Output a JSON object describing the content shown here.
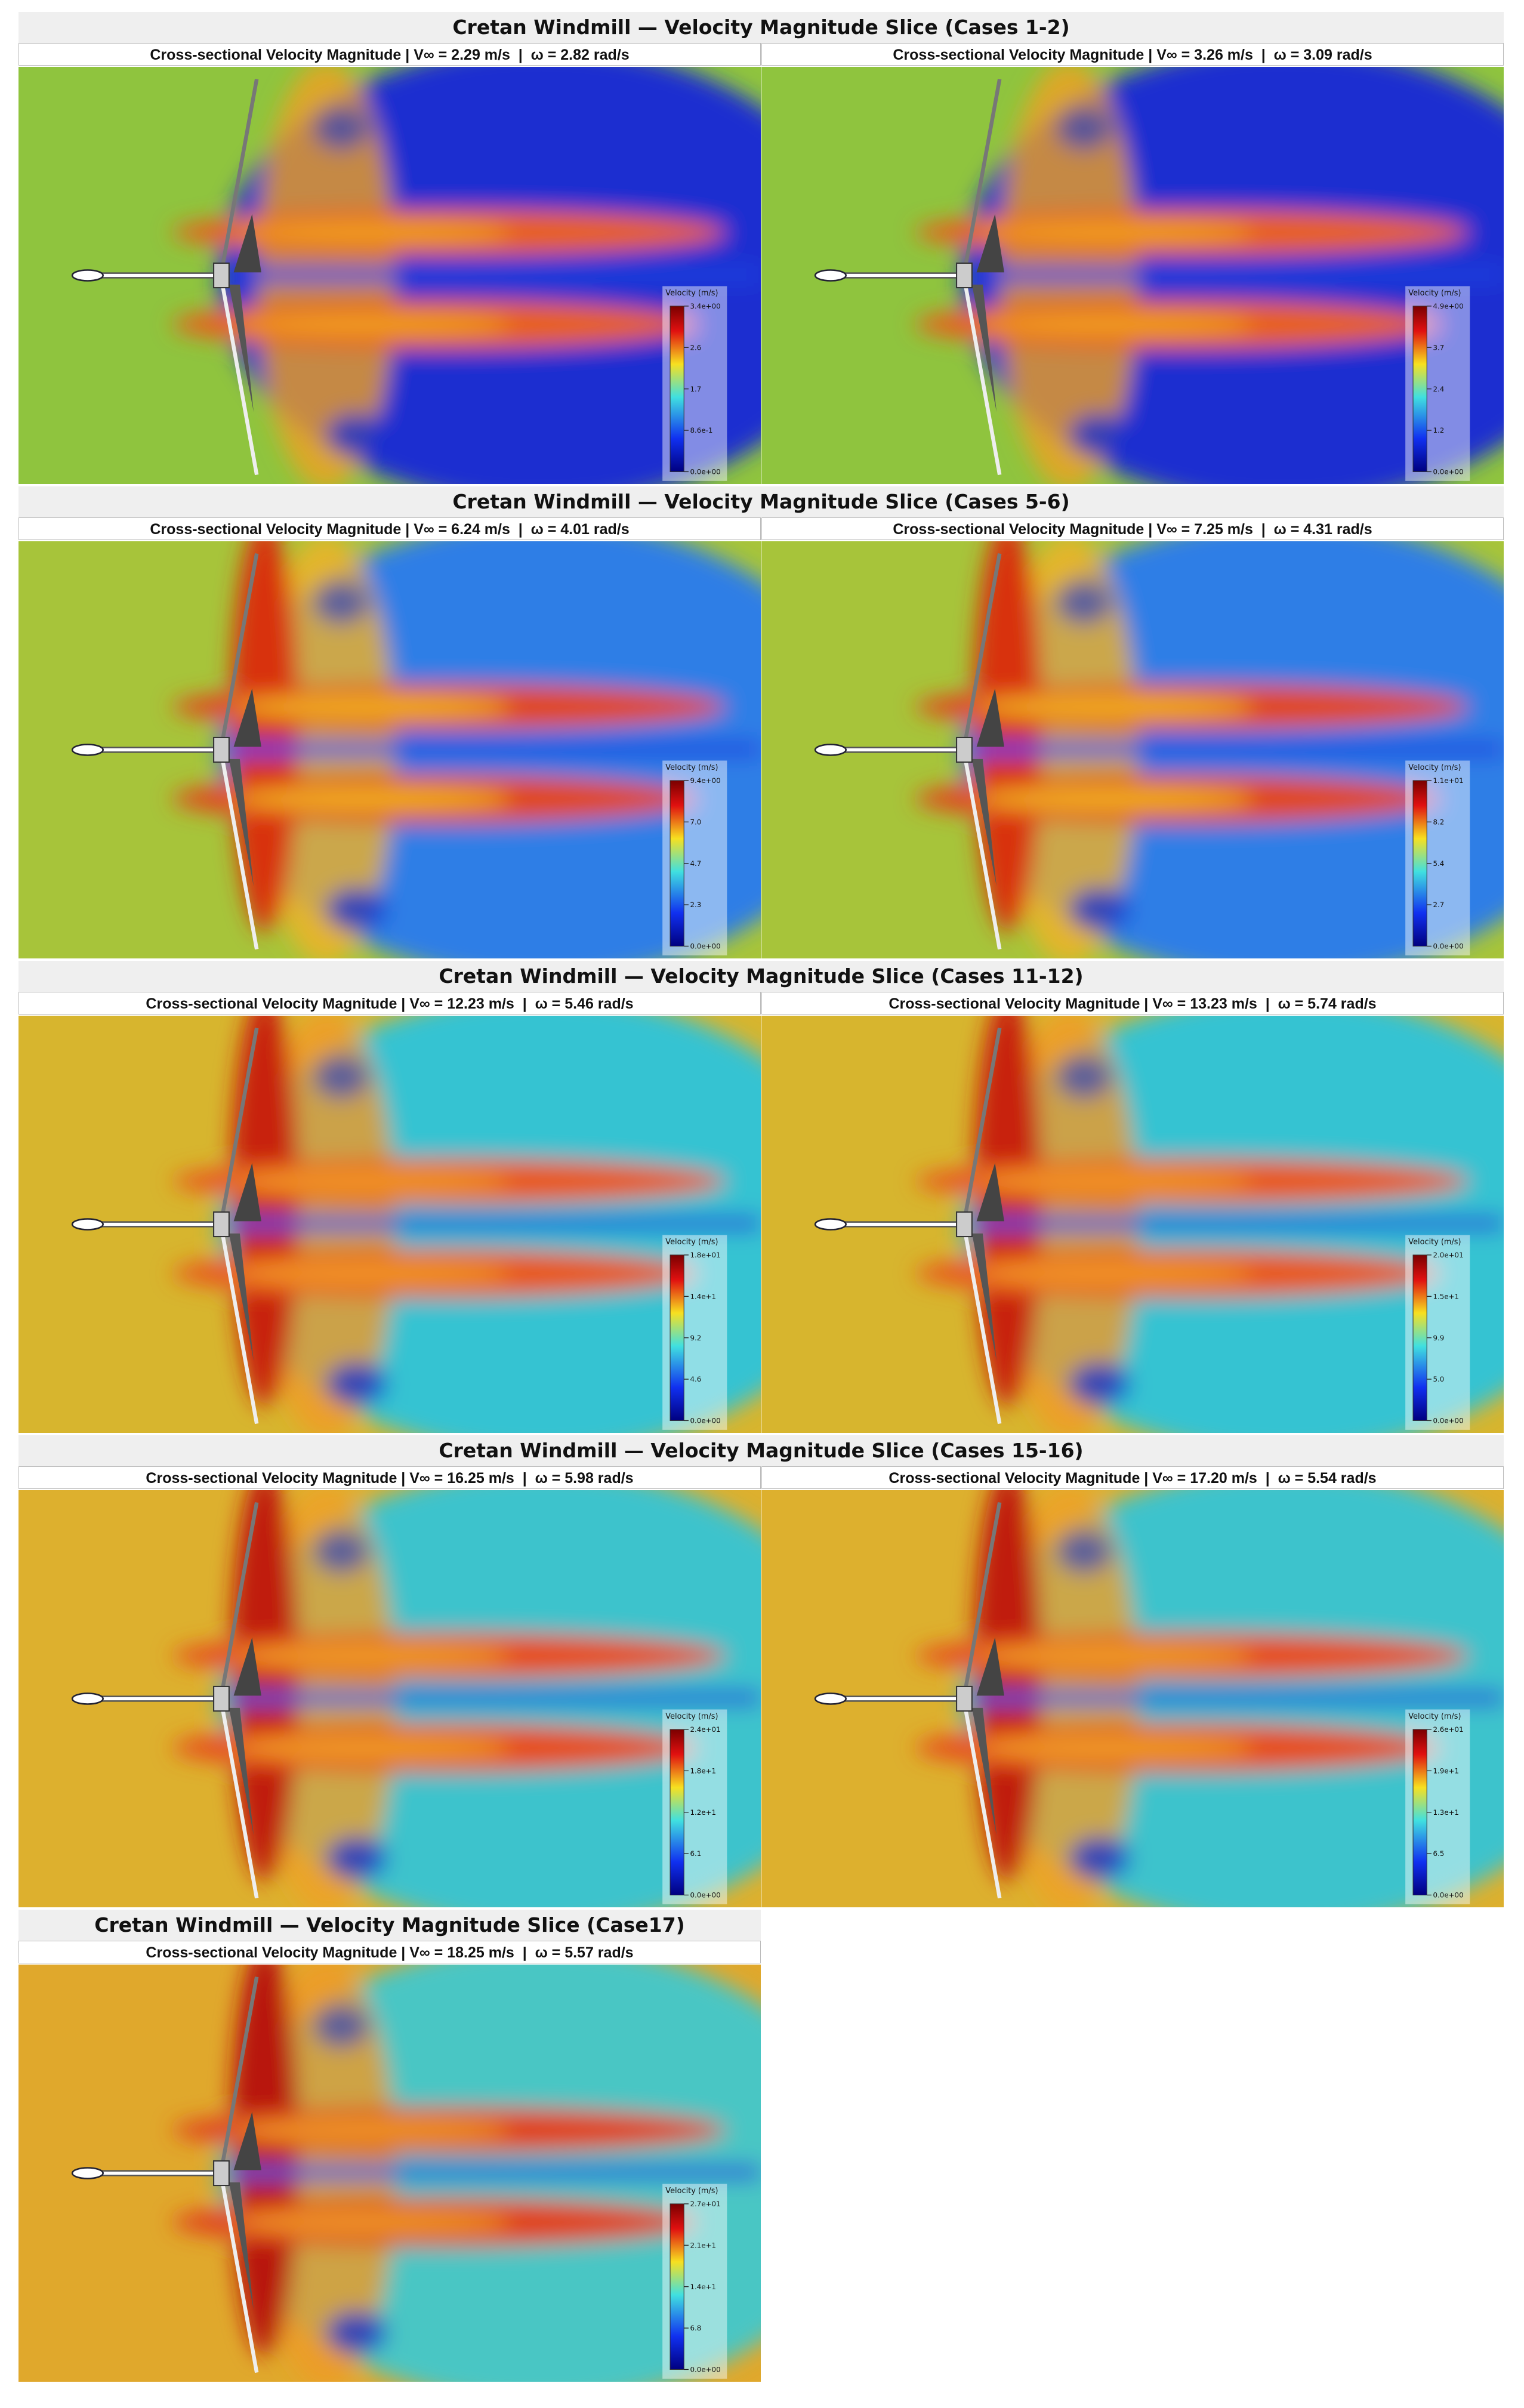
{
  "groups": [
    {
      "title": "Cretan Windmill — Velocity Magnitude Slice (Cases 1-2)",
      "panels": [
        {
          "subtitle": "Cross-sectional Velocity Magnitude | V∞ = 2.29 m/s  |  ω = 2.82 rad/s",
          "colorbar": {
            "label": "Velocity (m/s)",
            "ticks": [
              "3.4e+00",
              "2.6",
              "1.7",
              "8.6e-1",
              "0.0e+00"
            ]
          }
        },
        {
          "subtitle": "Cross-sectional Velocity Magnitude | V∞ = 3.26 m/s  |  ω = 3.09 rad/s",
          "colorbar": {
            "label": "Velocity (m/s)",
            "ticks": [
              "4.9e+00",
              "3.7",
              "2.4",
              "1.2",
              "0.0e+00"
            ]
          }
        }
      ]
    },
    {
      "title": "Cretan Windmill — Velocity Magnitude Slice (Cases 5-6)",
      "panels": [
        {
          "subtitle": "Cross-sectional Velocity Magnitude | V∞ = 6.24 m/s  |  ω = 4.01 rad/s",
          "colorbar": {
            "label": "Velocity (m/s)",
            "ticks": [
              "9.4e+00",
              "7.0",
              "4.7",
              "2.3",
              "0.0e+00"
            ]
          }
        },
        {
          "subtitle": "Cross-sectional Velocity Magnitude | V∞ = 7.25 m/s  |  ω = 4.31 rad/s",
          "colorbar": {
            "label": "Velocity (m/s)",
            "ticks": [
              "1.1e+01",
              "8.2",
              "5.4",
              "2.7",
              "0.0e+00"
            ]
          }
        }
      ]
    },
    {
      "title": "Cretan Windmill — Velocity Magnitude Slice (Cases 11-12)",
      "panels": [
        {
          "subtitle": "Cross-sectional Velocity Magnitude | V∞ = 12.23 m/s  |  ω = 5.46 rad/s",
          "colorbar": {
            "label": "Velocity (m/s)",
            "ticks": [
              "1.8e+01",
              "1.4e+1",
              "9.2",
              "4.6",
              "0.0e+00"
            ]
          }
        },
        {
          "subtitle": "Cross-sectional Velocity Magnitude | V∞ = 13.23 m/s  |  ω = 5.74 rad/s",
          "colorbar": {
            "label": "Velocity (m/s)",
            "ticks": [
              "2.0e+01",
              "1.5e+1",
              "9.9",
              "5.0",
              "0.0e+00"
            ]
          }
        }
      ]
    },
    {
      "title": "Cretan Windmill — Velocity Magnitude Slice (Cases 15-16)",
      "panels": [
        {
          "subtitle": "Cross-sectional Velocity Magnitude | V∞ = 16.25 m/s  |  ω = 5.98 rad/s",
          "colorbar": {
            "label": "Velocity (m/s)",
            "ticks": [
              "2.4e+01",
              "1.8e+1",
              "1.2e+1",
              "6.1",
              "0.0e+00"
            ]
          }
        },
        {
          "subtitle": "Cross-sectional Velocity Magnitude | V∞ = 17.20 m/s  |  ω = 5.54 rad/s",
          "colorbar": {
            "label": "Velocity (m/s)",
            "ticks": [
              "2.6e+01",
              "1.9e+1",
              "1.3e+1",
              "6.5",
              "0.0e+00"
            ]
          }
        }
      ]
    },
    {
      "title": "Cretan Windmill — Velocity Magnitude Slice (Case17)",
      "panels": [
        {
          "subtitle": "Cross-sectional Velocity Magnitude | V∞ = 18.25 m/s  |  ω = 5.57 rad/s",
          "colorbar": {
            "label": "Velocity (m/s)",
            "ticks": [
              "2.7e+01",
              "2.1e+1",
              "1.4e+1",
              "6.8",
              "0.0e+00"
            ]
          }
        }
      ]
    }
  ]
}
